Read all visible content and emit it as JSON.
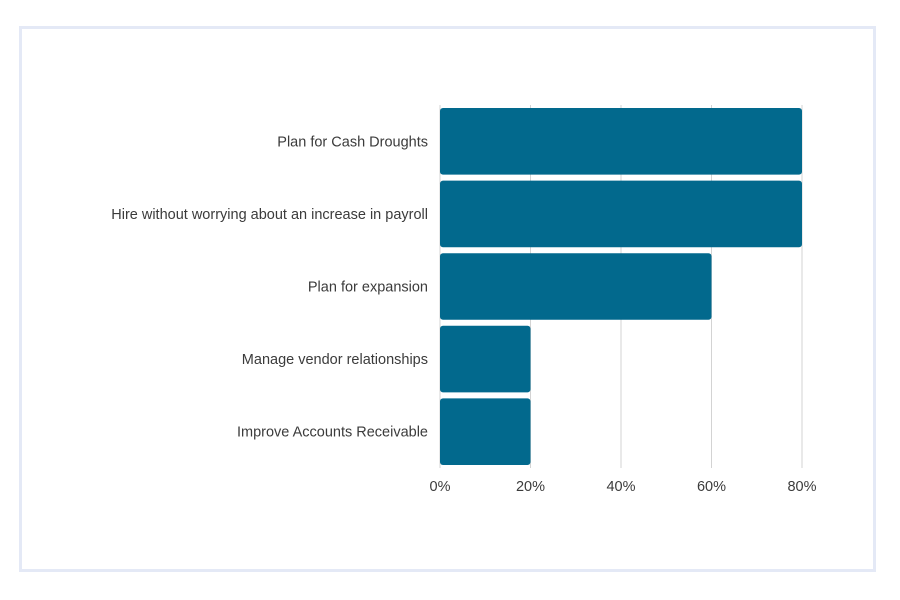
{
  "chart_data": {
    "type": "bar",
    "orientation": "horizontal",
    "categories": [
      "Plan for Cash Droughts",
      "Hire without worrying about an increase in payroll",
      "Plan for expansion",
      "Manage vendor relationships",
      "Improve Accounts Receivable"
    ],
    "values": [
      80,
      80,
      60,
      20,
      20
    ],
    "xlim": [
      0,
      80
    ],
    "xticks": [
      "0%",
      "20%",
      "40%",
      "60%",
      "80%"
    ],
    "xtick_values": [
      0,
      20,
      40,
      60,
      80
    ],
    "grid": true,
    "bar_color": "#02698d",
    "grid_color": "#d3d3d3",
    "frame_color": "#e4e9f6"
  }
}
